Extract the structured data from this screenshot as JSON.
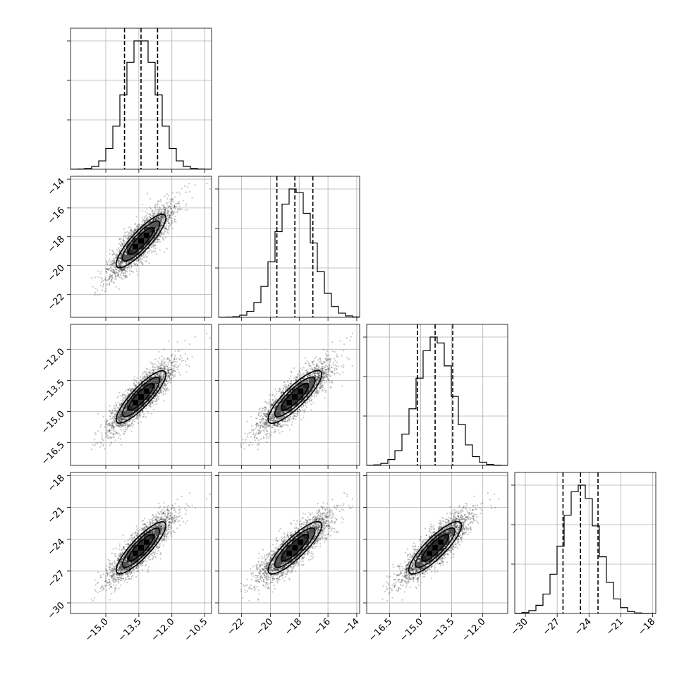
{
  "chart_data": {
    "type": "corner",
    "parameters": [
      {
        "name": "",
        "mean": -13.4,
        "std": 0.75,
        "range": [
          -16.6,
          -10.2
        ],
        "quantiles": [
          -14.15,
          -13.4,
          -12.65
        ],
        "ticks": [
          -15.0,
          -13.5,
          -12.0,
          -10.5
        ],
        "ticklabels": [
          "−15.0",
          "−13.5",
          "−12.0",
          "−10.5"
        ]
      },
      {
        "name": "",
        "mean": -18.3,
        "std": 1.25,
        "range": [
          -23.6,
          -13.8
        ],
        "quantiles": [
          -19.55,
          -18.3,
          -17.05
        ],
        "ticks": [
          -22,
          -20,
          -18,
          -16,
          -14
        ],
        "ticklabels": [
          "−22",
          "−20",
          "−18",
          "−16",
          "−14"
        ]
      },
      {
        "name": "",
        "mean": -14.3,
        "std": 0.85,
        "range": [
          -17.6,
          -10.8
        ],
        "quantiles": [
          -15.15,
          -14.3,
          -13.45
        ],
        "ticks": [
          -16.5,
          -15.0,
          -13.5,
          -12.0
        ],
        "ticklabels": [
          "−16.5",
          "−15.0",
          "−13.5",
          "−12.0"
        ]
      },
      {
        "name": "",
        "mean": -24.8,
        "std": 1.65,
        "range": [
          -31.0,
          -17.7
        ],
        "quantiles": [
          -26.45,
          -24.8,
          -23.15
        ],
        "ticks": [
          -30,
          -27,
          -24,
          -21,
          -18
        ],
        "ticklabels": [
          "−30",
          "−27",
          "−24",
          "−21",
          "−18"
        ]
      }
    ],
    "correlation": 0.93,
    "histogram_bins": 20,
    "contour_levels_sigma": [
      0.5,
      1.0,
      1.5,
      2.0
    ],
    "grid": true,
    "colors": {
      "line": "#000000",
      "grid": "#b0b0b0",
      "points": "#000000",
      "density_max": "#000000"
    }
  }
}
